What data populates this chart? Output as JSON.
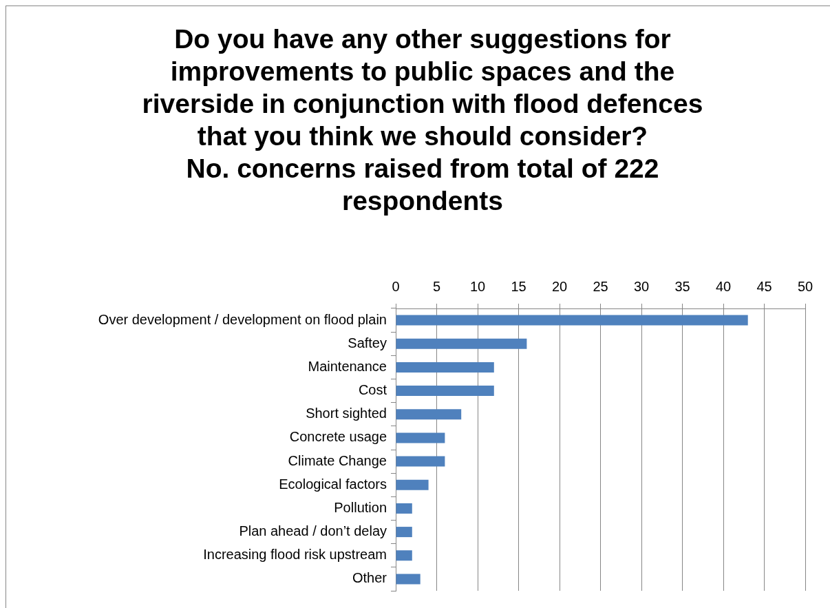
{
  "chart_data": {
    "type": "bar",
    "orientation": "horizontal",
    "title": "Do you have any other suggestions for improvements to public spaces and the riverside in conjunction with flood defences that you think we should consider?",
    "subtitle": "No. concerns raised from total of 222 respondents",
    "categories": [
      "Over development / development on flood plain",
      "Saftey",
      "Maintenance",
      "Cost",
      "Short sighted",
      "Concrete usage",
      "Climate Change",
      "Ecological factors",
      "Pollution",
      "Plan ahead / don’t delay",
      "Increasing flood risk upstream",
      "Other"
    ],
    "values": [
      43,
      16,
      12,
      12,
      8,
      6,
      6,
      4,
      2,
      2,
      2,
      3
    ],
    "color": "#4f81bd",
    "xlim": [
      0,
      50
    ],
    "xticks": [
      0,
      5,
      10,
      15,
      20,
      25,
      30,
      35,
      40,
      45,
      50
    ],
    "grid": "x",
    "legend": false
  }
}
